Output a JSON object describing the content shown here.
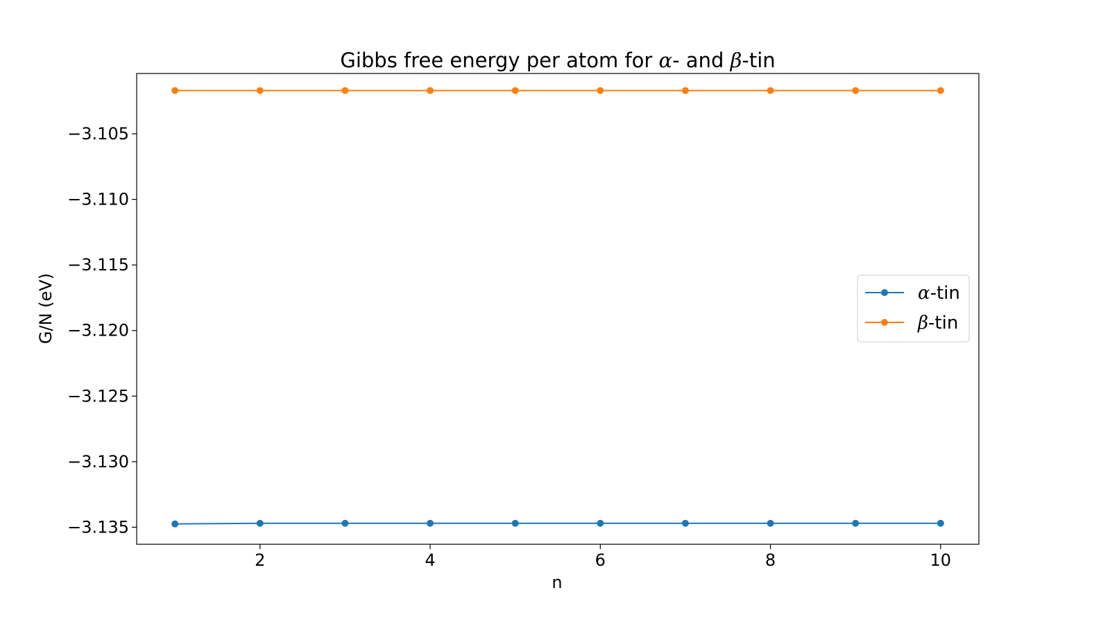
{
  "chart_data": {
    "type": "line",
    "title_parts": {
      "prefix": "Gibbs free energy per atom for ",
      "alpha": "α",
      "middle": "- and ",
      "beta": "β",
      "suffix": "-tin"
    },
    "xlabel": "n",
    "ylabel": "G/N (eV)",
    "xlim": [
      0.55,
      10.45
    ],
    "ylim": [
      -3.1363,
      -3.1004
    ],
    "x_ticks": [
      2,
      4,
      6,
      8,
      10
    ],
    "x_tick_labels": [
      "2",
      "4",
      "6",
      "8",
      "10"
    ],
    "y_ticks": [
      -3.135,
      -3.13,
      -3.125,
      -3.12,
      -3.115,
      -3.11,
      -3.105
    ],
    "y_tick_labels": [
      "−3.135",
      "−3.130",
      "−3.125",
      "−3.120",
      "−3.115",
      "−3.110",
      "−3.105"
    ],
    "x": [
      1,
      2,
      3,
      4,
      5,
      6,
      7,
      8,
      9,
      10
    ],
    "series": [
      {
        "greek": "α",
        "name_suffix": "-tin",
        "color": "#1f77b4",
        "values": [
          -3.13475,
          -3.1347,
          -3.1347,
          -3.1347,
          -3.1347,
          -3.1347,
          -3.1347,
          -3.1347,
          -3.1347,
          -3.1347
        ]
      },
      {
        "greek": "β",
        "name_suffix": "-tin",
        "color": "#ff7f0e",
        "values": [
          -3.1017,
          -3.1017,
          -3.1017,
          -3.1017,
          -3.1017,
          -3.1017,
          -3.1017,
          -3.1017,
          -3.1017,
          -3.1017
        ]
      }
    ],
    "grid": false,
    "legend_position": "center-right"
  }
}
